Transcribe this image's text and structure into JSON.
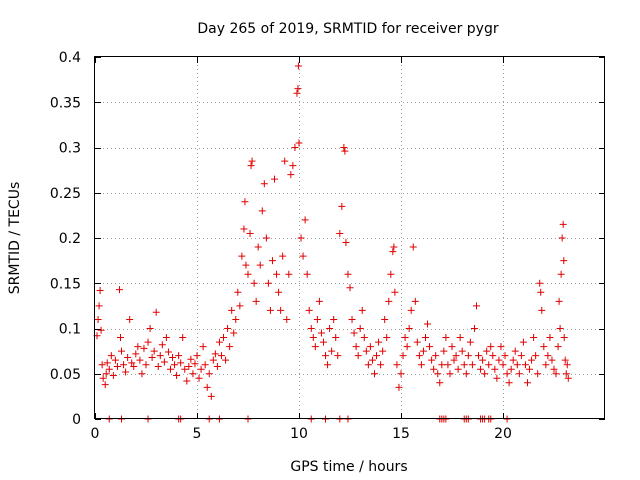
{
  "chart_data": {
    "type": "scatter",
    "title": "Day 265 of 2019, SRMTID for receiver pygr",
    "xlabel": "GPS time / hours",
    "ylabel": "SRMTID / TECUs",
    "xlim": [
      0,
      25
    ],
    "ylim": [
      0,
      0.4
    ],
    "xticks": [
      0,
      5,
      10,
      15,
      20
    ],
    "yticks": [
      0,
      0.05,
      0.1,
      0.15,
      0.2,
      0.25,
      0.3,
      0.35,
      0.4
    ],
    "xtick_labels": [
      "0",
      "5",
      "10",
      "15",
      "20"
    ],
    "ytick_labels": [
      "0",
      "0.05",
      "0.1",
      "0.15",
      "0.2",
      "0.25",
      "0.3",
      "0.35",
      "0.4"
    ],
    "grid": true,
    "marker": "+",
    "marker_color": "#e00000",
    "series": [
      {
        "name": "SRMTID",
        "points": [
          [
            0.1,
            0.092
          ],
          [
            0.15,
            0.11
          ],
          [
            0.2,
            0.125
          ],
          [
            0.25,
            0.142
          ],
          [
            0.3,
            0.098
          ],
          [
            0.35,
            0.06
          ],
          [
            0.4,
            0.045
          ],
          [
            0.5,
            0.038
          ],
          [
            0.55,
            0.05
          ],
          [
            0.6,
            0.062
          ],
          [
            0.7,
            0.055
          ],
          [
            0.8,
            0.07
          ],
          [
            0.9,
            0.048
          ],
          [
            1.0,
            0.065
          ],
          [
            1.1,
            0.058
          ],
          [
            1.2,
            0.143
          ],
          [
            1.25,
            0.09
          ],
          [
            1.3,
            0.075
          ],
          [
            1.4,
            0.06
          ],
          [
            1.5,
            0.052
          ],
          [
            1.6,
            0.068
          ],
          [
            1.7,
            0.11
          ],
          [
            1.8,
            0.062
          ],
          [
            1.9,
            0.058
          ],
          [
            2.0,
            0.072
          ],
          [
            2.1,
            0.08
          ],
          [
            2.2,
            0.065
          ],
          [
            2.3,
            0.05
          ],
          [
            2.4,
            0.078
          ],
          [
            2.5,
            0.06
          ],
          [
            2.6,
            0.085
          ],
          [
            2.7,
            0.1
          ],
          [
            2.8,
            0.068
          ],
          [
            2.9,
            0.075
          ],
          [
            3.0,
            0.118
          ],
          [
            3.1,
            0.058
          ],
          [
            3.2,
            0.07
          ],
          [
            3.3,
            0.082
          ],
          [
            3.4,
            0.063
          ],
          [
            3.5,
            0.09
          ],
          [
            3.6,
            0.074
          ],
          [
            3.7,
            0.055
          ],
          [
            3.8,
            0.068
          ],
          [
            3.9,
            0.06
          ],
          [
            4.0,
            0.048
          ],
          [
            4.1,
            0.07
          ],
          [
            4.2,
            0.062
          ],
          [
            4.3,
            0.09
          ],
          [
            4.4,
            0.055
          ],
          [
            4.5,
            0.042
          ],
          [
            4.6,
            0.058
          ],
          [
            4.7,
            0.066
          ],
          [
            4.8,
            0.05
          ],
          [
            4.9,
            0.061
          ],
          [
            5.0,
            0.07
          ],
          [
            5.1,
            0.045
          ],
          [
            5.2,
            0.055
          ],
          [
            5.3,
            0.08
          ],
          [
            5.4,
            0.06
          ],
          [
            5.5,
            0.035
          ],
          [
            5.6,
            0.05
          ],
          [
            5.7,
            0.025
          ],
          [
            5.8,
            0.065
          ],
          [
            5.9,
            0.072
          ],
          [
            6.0,
            0.058
          ],
          [
            6.1,
            0.085
          ],
          [
            6.2,
            0.07
          ],
          [
            6.3,
            0.09
          ],
          [
            6.4,
            0.065
          ],
          [
            6.5,
            0.1
          ],
          [
            6.6,
            0.08
          ],
          [
            6.7,
            0.12
          ],
          [
            6.8,
            0.095
          ],
          [
            6.9,
            0.11
          ],
          [
            7.0,
            0.14
          ],
          [
            7.1,
            0.125
          ],
          [
            7.2,
            0.18
          ],
          [
            7.3,
            0.21
          ],
          [
            7.35,
            0.24
          ],
          [
            7.4,
            0.17
          ],
          [
            7.5,
            0.16
          ],
          [
            7.6,
            0.205
          ],
          [
            7.65,
            0.28
          ],
          [
            7.7,
            0.285
          ],
          [
            7.8,
            0.15
          ],
          [
            7.9,
            0.13
          ],
          [
            8.0,
            0.19
          ],
          [
            8.1,
            0.17
          ],
          [
            8.2,
            0.23
          ],
          [
            8.3,
            0.26
          ],
          [
            8.4,
            0.2
          ],
          [
            8.5,
            0.15
          ],
          [
            8.6,
            0.12
          ],
          [
            8.7,
            0.175
          ],
          [
            8.8,
            0.265
          ],
          [
            8.9,
            0.16
          ],
          [
            9.0,
            0.14
          ],
          [
            9.1,
            0.12
          ],
          [
            9.2,
            0.18
          ],
          [
            9.3,
            0.285
          ],
          [
            9.4,
            0.11
          ],
          [
            9.5,
            0.16
          ],
          [
            9.6,
            0.27
          ],
          [
            9.7,
            0.28
          ],
          [
            9.8,
            0.3
          ],
          [
            9.9,
            0.36
          ],
          [
            9.95,
            0.365
          ],
          [
            9.97,
            0.39
          ],
          [
            10.0,
            0.305
          ],
          [
            10.1,
            0.2
          ],
          [
            10.2,
            0.18
          ],
          [
            10.3,
            0.22
          ],
          [
            10.4,
            0.16
          ],
          [
            10.5,
            0.12
          ],
          [
            10.6,
            0.1
          ],
          [
            10.7,
            0.09
          ],
          [
            10.8,
            0.08
          ],
          [
            10.9,
            0.11
          ],
          [
            11.0,
            0.13
          ],
          [
            11.1,
            0.095
          ],
          [
            11.2,
            0.085
          ],
          [
            11.3,
            0.07
          ],
          [
            11.4,
            0.06
          ],
          [
            11.5,
            0.1
          ],
          [
            11.6,
            0.075
          ],
          [
            11.7,
            0.11
          ],
          [
            11.8,
            0.09
          ],
          [
            11.9,
            0.07
          ],
          [
            12.0,
            0.205
          ],
          [
            12.1,
            0.235
          ],
          [
            12.2,
            0.3
          ],
          [
            12.25,
            0.296
          ],
          [
            12.3,
            0.195
          ],
          [
            12.4,
            0.16
          ],
          [
            12.5,
            0.145
          ],
          [
            12.6,
            0.11
          ],
          [
            12.7,
            0.095
          ],
          [
            12.8,
            0.08
          ],
          [
            12.9,
            0.07
          ],
          [
            13.0,
            0.1
          ],
          [
            13.1,
            0.12
          ],
          [
            13.2,
            0.09
          ],
          [
            13.3,
            0.075
          ],
          [
            13.4,
            0.06
          ],
          [
            13.5,
            0.08
          ],
          [
            13.6,
            0.065
          ],
          [
            13.7,
            0.05
          ],
          [
            13.8,
            0.07
          ],
          [
            13.9,
            0.085
          ],
          [
            14.0,
            0.06
          ],
          [
            14.1,
            0.075
          ],
          [
            14.2,
            0.11
          ],
          [
            14.3,
            0.09
          ],
          [
            14.4,
            0.13
          ],
          [
            14.5,
            0.16
          ],
          [
            14.6,
            0.185
          ],
          [
            14.65,
            0.19
          ],
          [
            14.7,
            0.14
          ],
          [
            14.8,
            0.06
          ],
          [
            14.9,
            0.035
          ],
          [
            15.0,
            0.05
          ],
          [
            15.1,
            0.07
          ],
          [
            15.2,
            0.09
          ],
          [
            15.3,
            0.08
          ],
          [
            15.4,
            0.1
          ],
          [
            15.5,
            0.12
          ],
          [
            15.6,
            0.19
          ],
          [
            15.7,
            0.13
          ],
          [
            15.8,
            0.085
          ],
          [
            15.9,
            0.07
          ],
          [
            16.0,
            0.06
          ],
          [
            16.1,
            0.075
          ],
          [
            16.2,
            0.09
          ],
          [
            16.3,
            0.105
          ],
          [
            16.4,
            0.08
          ],
          [
            16.5,
            0.065
          ],
          [
            16.6,
            0.055
          ],
          [
            16.7,
            0.07
          ],
          [
            16.8,
            0.05
          ],
          [
            16.9,
            0.04
          ],
          [
            17.0,
            0.06
          ],
          [
            17.1,
            0.075
          ],
          [
            17.2,
            0.09
          ],
          [
            17.3,
            0.06
          ],
          [
            17.4,
            0.05
          ],
          [
            17.5,
            0.08
          ],
          [
            17.6,
            0.065
          ],
          [
            17.7,
            0.07
          ],
          [
            17.8,
            0.055
          ],
          [
            17.9,
            0.09
          ],
          [
            18.0,
            0.075
          ],
          [
            18.1,
            0.06
          ],
          [
            18.2,
            0.05
          ],
          [
            18.3,
            0.07
          ],
          [
            18.4,
            0.085
          ],
          [
            18.5,
            0.06
          ],
          [
            18.6,
            0.1
          ],
          [
            18.7,
            0.125
          ],
          [
            18.8,
            0.07
          ],
          [
            18.9,
            0.055
          ],
          [
            19.0,
            0.065
          ],
          [
            19.1,
            0.05
          ],
          [
            19.2,
            0.075
          ],
          [
            19.3,
            0.06
          ],
          [
            19.4,
            0.08
          ],
          [
            19.5,
            0.07
          ],
          [
            19.6,
            0.055
          ],
          [
            19.7,
            0.045
          ],
          [
            19.8,
            0.065
          ],
          [
            19.9,
            0.08
          ],
          [
            20.0,
            0.06
          ],
          [
            20.1,
            0.07
          ],
          [
            20.2,
            0.05
          ],
          [
            20.3,
            0.04
          ],
          [
            20.4,
            0.055
          ],
          [
            20.5,
            0.065
          ],
          [
            20.6,
            0.075
          ],
          [
            20.7,
            0.06
          ],
          [
            20.8,
            0.05
          ],
          [
            20.9,
            0.07
          ],
          [
            21.0,
            0.085
          ],
          [
            21.1,
            0.06
          ],
          [
            21.2,
            0.04
          ],
          [
            21.3,
            0.055
          ],
          [
            21.4,
            0.065
          ],
          [
            21.5,
            0.09
          ],
          [
            21.6,
            0.07
          ],
          [
            21.7,
            0.05
          ],
          [
            21.8,
            0.15
          ],
          [
            21.85,
            0.14
          ],
          [
            21.9,
            0.12
          ],
          [
            22.0,
            0.08
          ],
          [
            22.1,
            0.06
          ],
          [
            22.2,
            0.07
          ],
          [
            22.3,
            0.09
          ],
          [
            22.4,
            0.065
          ],
          [
            22.5,
            0.055
          ],
          [
            22.6,
            0.05
          ],
          [
            22.7,
            0.08
          ],
          [
            22.75,
            0.13
          ],
          [
            22.8,
            0.1
          ],
          [
            22.85,
            0.16
          ],
          [
            22.9,
            0.2
          ],
          [
            22.95,
            0.215
          ],
          [
            22.98,
            0.175
          ],
          [
            23.0,
            0.09
          ],
          [
            23.05,
            0.065
          ],
          [
            23.1,
            0.05
          ],
          [
            23.15,
            0.06
          ],
          [
            23.2,
            0.045
          ],
          [
            0.7,
            0.0
          ],
          [
            1.3,
            0.0
          ],
          [
            2.6,
            0.0
          ],
          [
            4.1,
            0.0
          ],
          [
            4.2,
            0.0
          ],
          [
            5.6,
            0.0
          ],
          [
            6.1,
            0.0
          ],
          [
            7.5,
            0.0
          ],
          [
            10.6,
            0.0
          ],
          [
            11.3,
            0.0
          ],
          [
            12.0,
            0.0
          ],
          [
            12.4,
            0.0
          ],
          [
            16.9,
            0.0
          ],
          [
            17.0,
            0.0
          ],
          [
            17.1,
            0.0
          ],
          [
            17.2,
            0.0
          ],
          [
            18.1,
            0.0
          ],
          [
            18.2,
            0.0
          ],
          [
            18.3,
            0.0
          ],
          [
            18.9,
            0.0
          ],
          [
            19.0,
            0.0
          ],
          [
            19.1,
            0.0
          ],
          [
            19.3,
            0.0
          ],
          [
            19.4,
            0.0
          ],
          [
            20.2,
            0.0
          ]
        ]
      }
    ]
  }
}
